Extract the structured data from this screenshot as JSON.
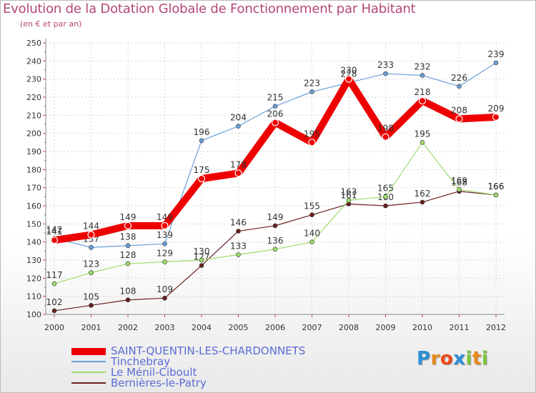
{
  "chart_data": {
    "type": "line",
    "title": "Evolution de la Dotation Globale de Fonctionnement par Habitant",
    "subtitle": "(en € et par an)",
    "xlabel": "",
    "ylabel": "",
    "ylim": [
      100,
      250
    ],
    "yticks": [
      100,
      110,
      120,
      130,
      140,
      150,
      160,
      170,
      180,
      190,
      200,
      210,
      220,
      230,
      240,
      250
    ],
    "x": [
      "2000",
      "2001",
      "2002",
      "2003",
      "2004",
      "2005",
      "2006",
      "2007",
      "2008",
      "2009",
      "2010",
      "2011",
      "2012"
    ],
    "series": [
      {
        "name": "Bernières-le-Patry",
        "color": "#6b1f1f",
        "values": [
          102,
          105,
          108,
          109,
          127,
          146,
          149,
          155,
          161,
          160,
          162,
          168,
          166
        ]
      },
      {
        "name": "Le Ménil-Ciboult",
        "color": "#9edc6a",
        "values": [
          117,
          123,
          128,
          129,
          130,
          133,
          136,
          140,
          163,
          165,
          195,
          169,
          166
        ]
      },
      {
        "name": "Tinchebray",
        "color": "#6aa0d8",
        "values": [
          142,
          137,
          138,
          139,
          196,
          204,
          215,
          223,
          228,
          233,
          232,
          226,
          239
        ]
      },
      {
        "name": "SAINT-QUENTIN-LES-CHARDONNETS",
        "color": "#ee0000",
        "values": [
          141,
          144,
          149,
          149,
          175,
          178,
          206,
          195,
          230,
          198,
          218,
          208,
          209
        ]
      }
    ]
  },
  "legend": {
    "items": [
      {
        "label": "SAINT-QUENTIN-LES-CHARDONNETS",
        "color": "#ee0000"
      },
      {
        "label": "Tinchebray",
        "color": "#6aa0d8"
      },
      {
        "label": "Le Ménil-Ciboult",
        "color": "#9edc6a"
      },
      {
        "label": "Bernières-le-Patry",
        "color": "#6b1f1f"
      }
    ]
  },
  "logo": {
    "letters": [
      "P",
      "r",
      "o",
      "x",
      "i",
      "t",
      "i"
    ],
    "colors": [
      "#2b8fd6",
      "#e88a1a",
      "#ee4a1a",
      "#2b8fd6",
      "#7cc23a",
      "#e88a1a",
      "#7cc23a"
    ]
  }
}
